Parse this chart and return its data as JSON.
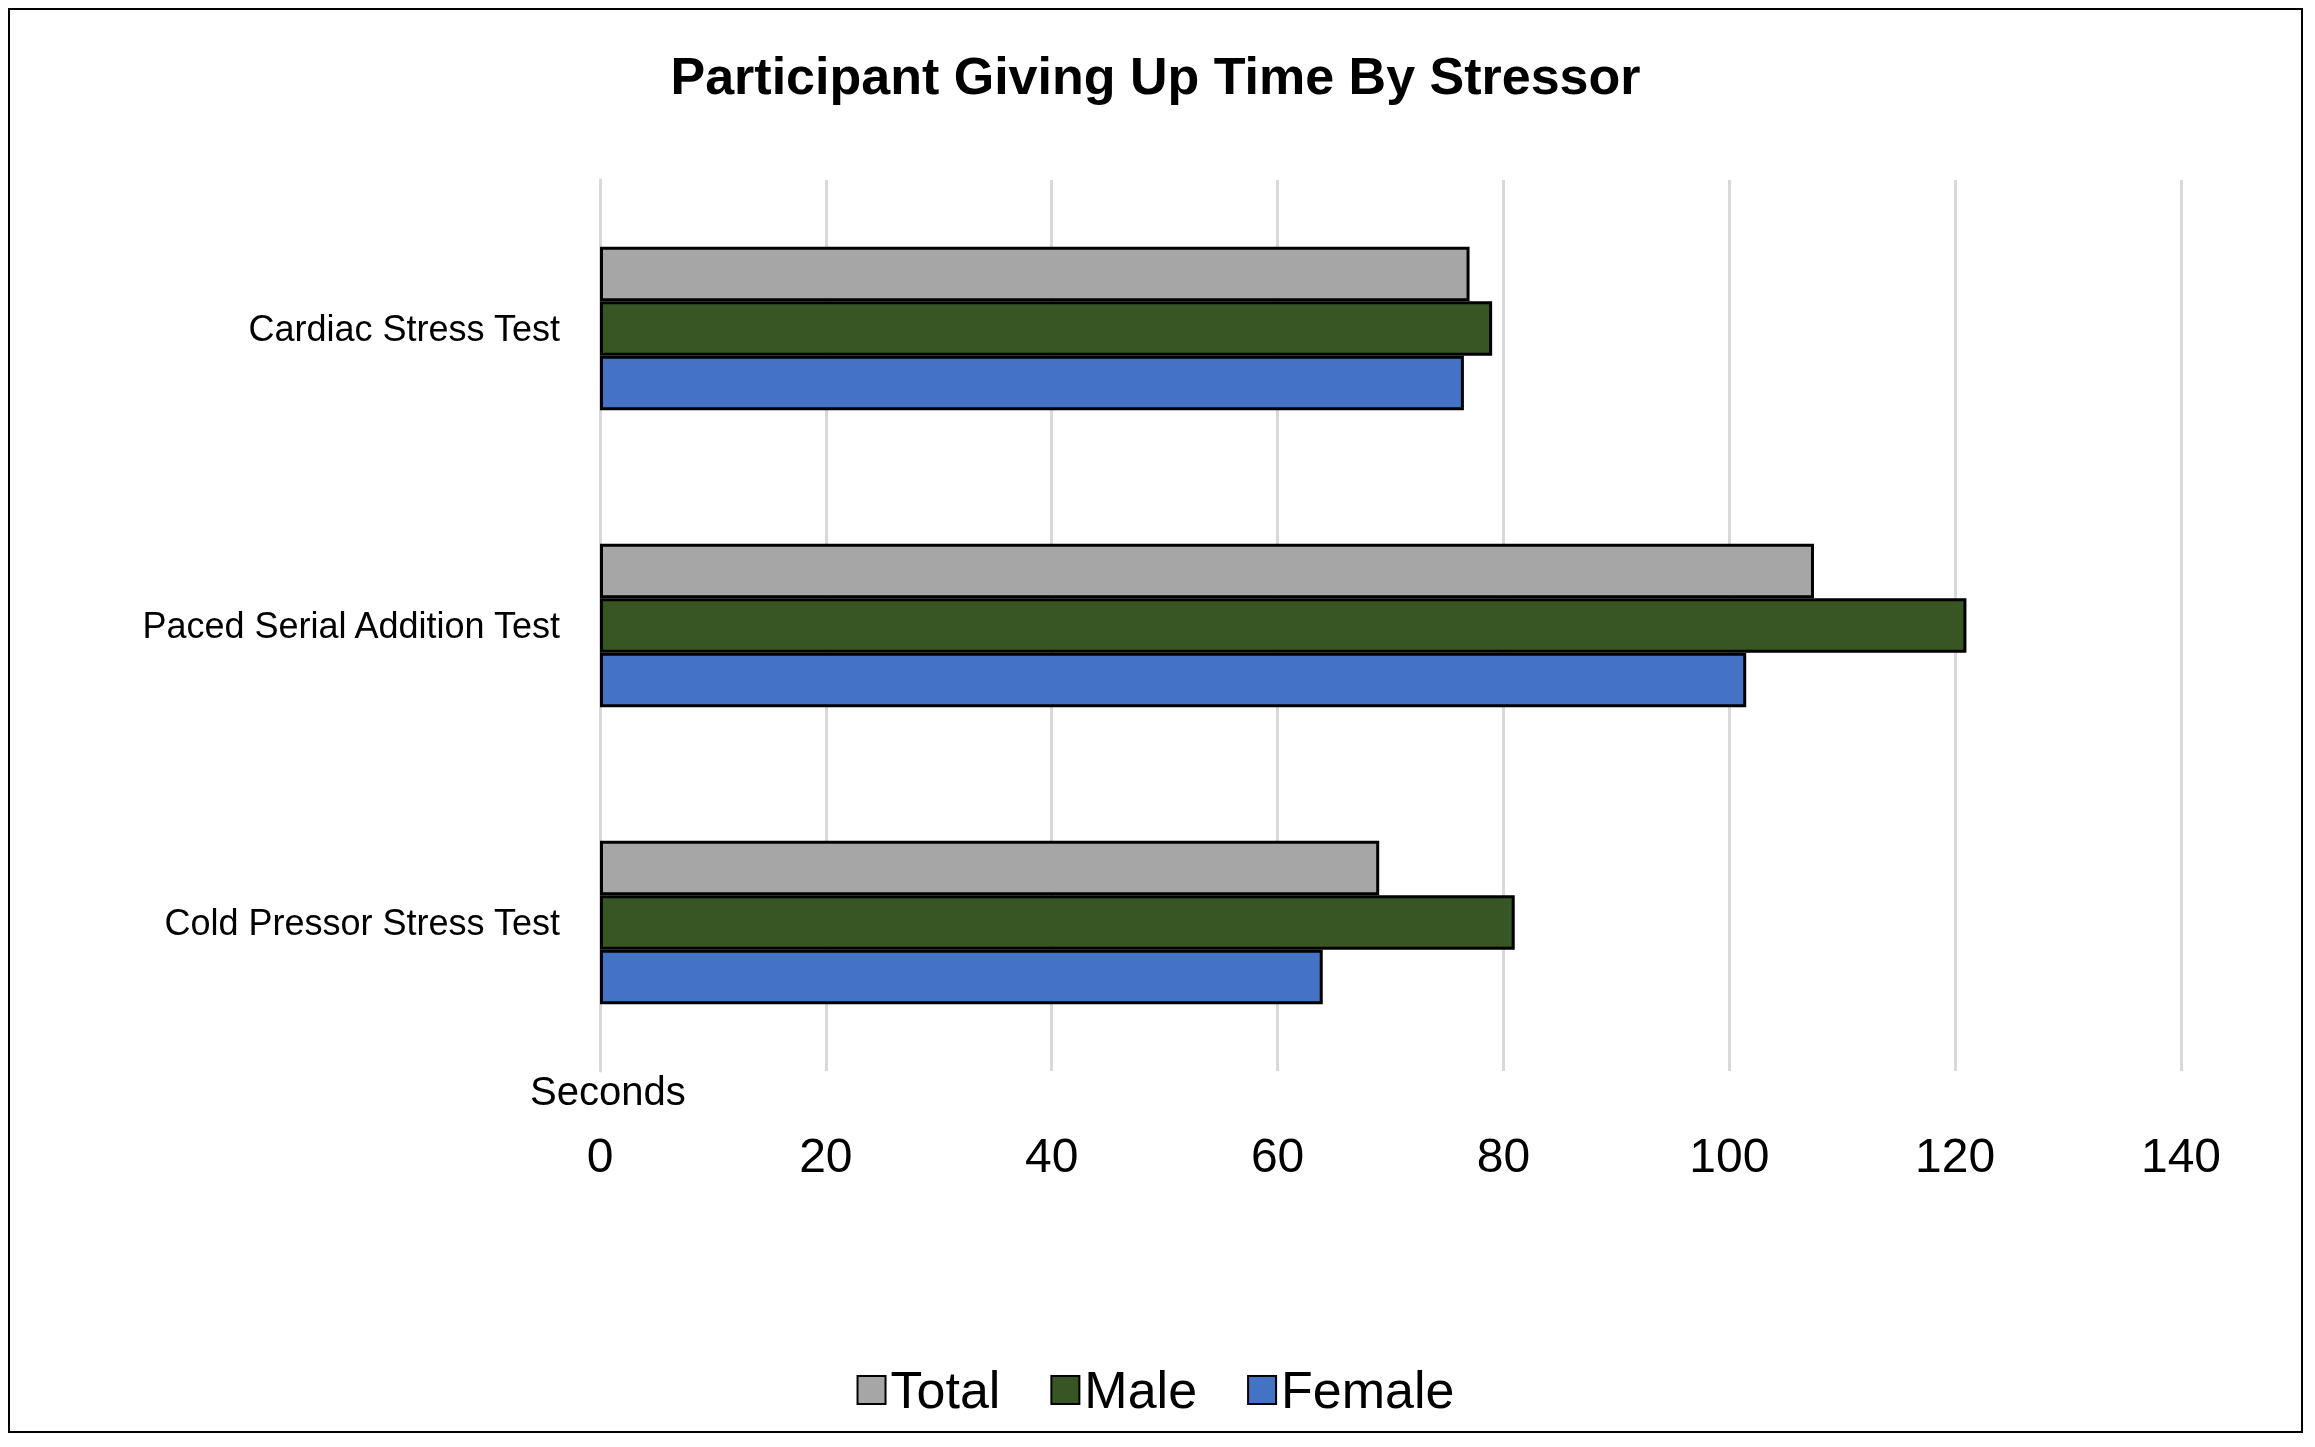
{
  "chart_data": {
    "type": "bar",
    "title": "Participant Giving Up Time By Stressor",
    "orientation": "horizontal",
    "xlabel": "Seconds",
    "categories": [
      "Cardiac Stress Test",
      "Paced Serial Addition Test",
      "Cold Pressor Stress Test"
    ],
    "series": [
      {
        "name": "Total",
        "color": "#a6a6a6",
        "values": [
          77,
          107.5,
          69
        ]
      },
      {
        "name": "Male",
        "color": "#375623",
        "values": [
          79,
          121,
          81
        ]
      },
      {
        "name": "Female",
        "color": "#4472c4",
        "values": [
          76.5,
          101.5,
          64
        ]
      }
    ],
    "xlim": [
      0,
      140
    ],
    "xticks": [
      0,
      20,
      40,
      60,
      80,
      100,
      120,
      140
    ],
    "grid": "x",
    "legend": "bottom"
  }
}
